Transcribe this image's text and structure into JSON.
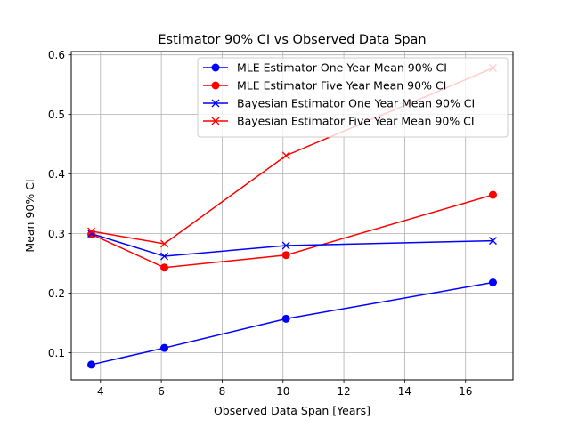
{
  "chart_data": {
    "type": "line",
    "title": "Estimator 90% CI vs Observed Data Span",
    "xlabel": "Observed Data Span [Years]",
    "ylabel": "Mean 90% CI",
    "xlim": [
      3.04,
      17.56
    ],
    "ylim": [
      0.0545,
      0.6055
    ],
    "xticks": [
      4,
      6,
      8,
      10,
      12,
      14,
      16
    ],
    "yticks": [
      0.1,
      0.2,
      0.3,
      0.4,
      0.5,
      0.6
    ],
    "grid": true,
    "legend_position": "top-right",
    "x": [
      3.7,
      6.1,
      10.1,
      16.9
    ],
    "series": [
      {
        "name": "MLE Estimator One Year Mean 90% CI",
        "color": "#0000ff",
        "marker": "circle",
        "values": [
          0.08,
          0.108,
          0.157,
          0.218
        ]
      },
      {
        "name": "MLE Estimator Five Year Mean 90% CI",
        "color": "#ff0000",
        "marker": "circle",
        "values": [
          0.299,
          0.243,
          0.264,
          0.365
        ]
      },
      {
        "name": "Bayesian Estimator One Year Mean 90% CI",
        "color": "#0000ff",
        "marker": "x",
        "values": [
          0.3,
          0.262,
          0.28,
          0.288
        ]
      },
      {
        "name": "Bayesian Estimator Five Year Mean 90% CI",
        "color": "#ff0000",
        "marker": "x",
        "values": [
          0.304,
          0.283,
          0.431,
          0.578
        ]
      }
    ]
  }
}
